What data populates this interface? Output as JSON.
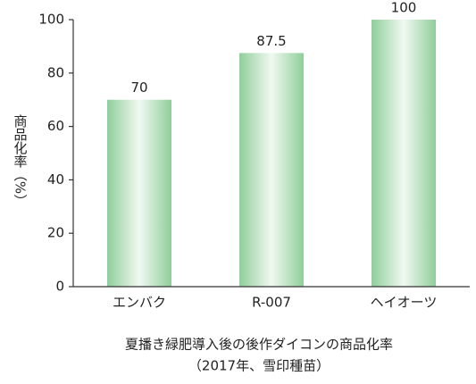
{
  "chart_data": {
    "type": "bar",
    "title": "夏播き緑肥導入後の後作ダイコンの商品化率",
    "subtitle": "（2017年、雪印種苗）",
    "y_label": "商品化率（%）",
    "categories": [
      "エンバク",
      "R-007",
      "ヘイオーツ"
    ],
    "values": [
      70,
      87.5,
      100
    ],
    "color": "#8fce9a",
    "ylim": [
      0,
      100
    ],
    "yticks": [
      0,
      20,
      40,
      60,
      80,
      100
    ],
    "grid": false
  }
}
